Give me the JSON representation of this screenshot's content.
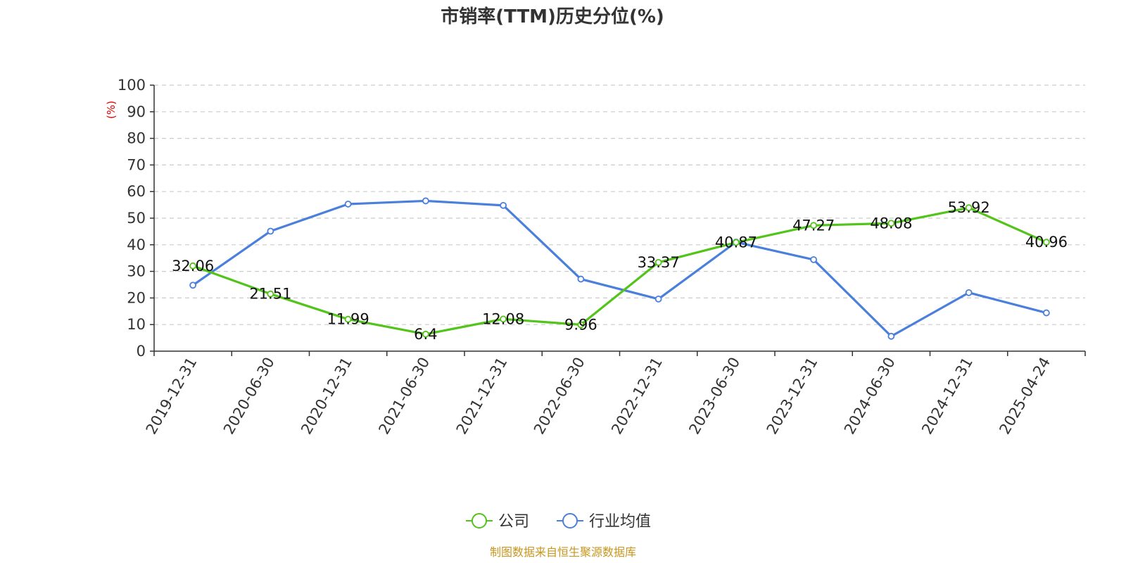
{
  "chart_data": {
    "type": "line",
    "title": "市销率(TTM)历史分位(%)",
    "ylabel": "(%)",
    "ylim": [
      0,
      100
    ],
    "yticks": [
      0,
      10,
      20,
      30,
      40,
      50,
      60,
      70,
      80,
      90,
      100
    ],
    "categories": [
      "2019-12-31",
      "2020-06-30",
      "2020-12-31",
      "2021-06-30",
      "2021-12-31",
      "2022-06-30",
      "2022-12-31",
      "2023-06-30",
      "2023-12-31",
      "2024-06-30",
      "2024-12-31",
      "2025-04-24"
    ],
    "series": [
      {
        "name": "公司",
        "color": "#52c41a",
        "values": [
          32.06,
          21.51,
          11.99,
          6.4,
          12.08,
          9.96,
          33.37,
          40.87,
          47.27,
          48.08,
          53.92,
          40.96
        ],
        "data_labels": [
          "32.06",
          "21.51",
          "11.99",
          "6.4",
          "12.08",
          "9.96",
          "33.37",
          "40.87",
          "47.27",
          "48.08",
          "53.92",
          "40.96"
        ]
      },
      {
        "name": "行业均值",
        "color": "#4a7fdc",
        "values": [
          24.8,
          45.1,
          55.3,
          56.5,
          54.8,
          27.1,
          19.6,
          41.0,
          34.4,
          5.6,
          22.0,
          14.4
        ]
      }
    ],
    "grid": true,
    "legend": "bottom-center",
    "source": "制图数据来自恒生聚源数据库",
    "colors": {
      "axis": "#333333",
      "grid": "#cccccc",
      "ylabel": "#e00000",
      "source": "#c8961e"
    }
  }
}
